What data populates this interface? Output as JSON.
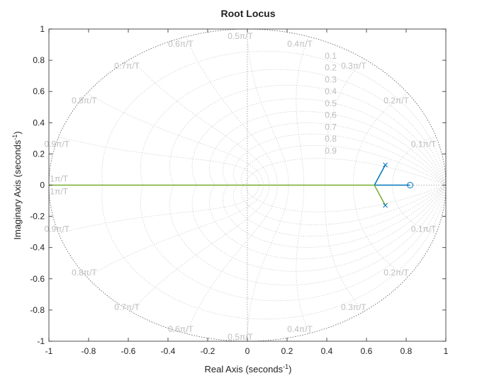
{
  "chart_data": {
    "type": "line",
    "title": "Root Locus",
    "xlabel": "Real Axis (seconds",
    "xlabel_sup": "-1",
    "xlabel_close": ")",
    "ylabel": "Imaginary Axis (seconds",
    "ylabel_sup": "-1",
    "ylabel_close": ")",
    "xlim": [
      -1,
      1
    ],
    "ylim": [
      -1,
      1
    ],
    "xticks": [
      -1,
      -0.8,
      -0.6,
      -0.4,
      -0.2,
      0,
      0.2,
      0.4,
      0.6,
      0.8,
      1
    ],
    "xtick_labels": [
      "-1",
      "-0.8",
      "-0.6",
      "-0.4",
      "-0.2",
      "0",
      "0.2",
      "0.4",
      "0.6",
      "0.8",
      "1"
    ],
    "yticks": [
      -1,
      -0.8,
      -0.6,
      -0.4,
      -0.2,
      0,
      0.2,
      0.4,
      0.6,
      0.8,
      1
    ],
    "ytick_labels": [
      "-1",
      "-0.8",
      "-0.6",
      "-0.4",
      "-0.2",
      "0",
      "0.2",
      "0.4",
      "0.6",
      "0.8",
      "1"
    ],
    "grid": true,
    "unit_circle": true,
    "damping_labels": [
      "0.1",
      "0.2",
      "0.3",
      "0.4",
      "0.5",
      "0.6",
      "0.7",
      "0.8",
      "0.9"
    ],
    "damping_values": [
      0.1,
      0.2,
      0.3,
      0.4,
      0.5,
      0.6,
      0.7,
      0.8,
      0.9
    ],
    "natural_freq_labels": [
      "0.1π/T",
      "0.2π/T",
      "0.3π/T",
      "0.4π/T",
      "0.5π/T",
      "0.6π/T",
      "0.7π/T",
      "0.8π/T",
      "0.9π/T",
      "1π/T"
    ],
    "natural_freq_values": [
      0.1,
      0.2,
      0.3,
      0.4,
      0.5,
      0.6,
      0.7,
      0.8,
      0.9,
      1.0
    ],
    "series": [
      {
        "color": "#0072bd",
        "points": [
          [
            0.695,
            0.13
          ],
          [
            0.64,
            0.0
          ],
          [
            0.82,
            0.0
          ]
        ]
      },
      {
        "color": "#77ac30",
        "points": [
          [
            0.695,
            -0.13
          ],
          [
            0.64,
            0.0
          ],
          [
            -1.0,
            0.0
          ]
        ]
      }
    ],
    "poles": [
      [
        0.695,
        0.13
      ],
      [
        0.695,
        -0.13
      ]
    ],
    "zeros": [
      [
        0.82,
        0.0
      ]
    ],
    "marker_color": "#0072bd"
  }
}
